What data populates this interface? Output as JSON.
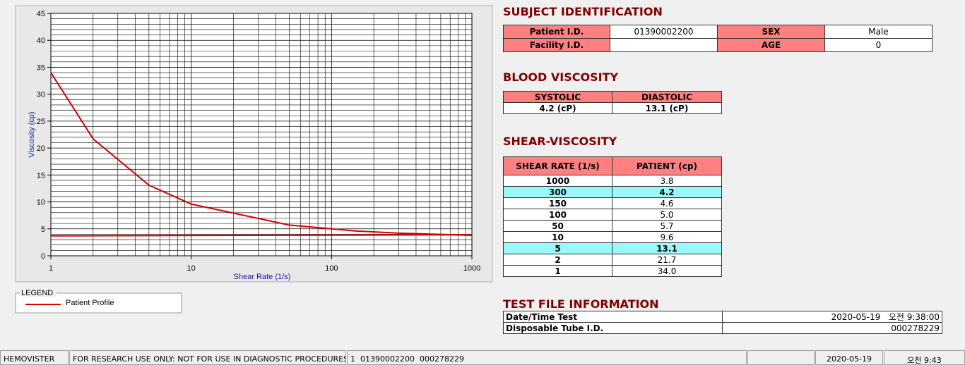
{
  "chart_data": {
    "type": "line",
    "xlabel": "Shear Rate (1/s)",
    "ylabel": "Viscosity (cp)",
    "xscale": "log",
    "xlim": [
      1,
      1000
    ],
    "ylim": [
      0,
      45
    ],
    "xticks": [
      1,
      10,
      100,
      1000
    ],
    "yticks": [
      0,
      5,
      10,
      15,
      20,
      25,
      30,
      35,
      40,
      45
    ],
    "grid": true,
    "legend_title": "LEGEND",
    "series": [
      {
        "name": "Patient Profile",
        "color": "#d40000",
        "x": [
          1,
          2,
          5,
          10,
          50,
          100,
          150,
          300,
          1000
        ],
        "values": [
          34,
          21.7,
          13.1,
          9.6,
          5.7,
          5.0,
          4.6,
          4.2,
          3.8
        ]
      },
      {
        "color": "#d40000",
        "x": [
          1,
          1000
        ],
        "values": [
          3.7,
          3.9
        ]
      }
    ]
  },
  "subject": {
    "title": "SUBJECT IDENTIFICATION",
    "rows": [
      [
        "Patient I.D.",
        "01390002200",
        "SEX",
        "Male"
      ],
      [
        "Facility I.D.",
        "",
        "AGE",
        "0"
      ]
    ]
  },
  "blood": {
    "title": "BLOOD VISCOSITY",
    "headers": [
      "SYSTOLIC",
      "DIASTOLIC"
    ],
    "values": [
      "4.2 (cP)",
      "13.1 (cP)"
    ]
  },
  "shear": {
    "title": "SHEAR-VISCOSITY",
    "headers": [
      "SHEAR RATE (1/s)",
      "PATIENT (cp)"
    ],
    "rows": [
      [
        "1000",
        "3.8"
      ],
      [
        "300",
        "4.2"
      ],
      [
        "150",
        "4.6"
      ],
      [
        "100",
        "5.0"
      ],
      [
        "50",
        "5.7"
      ],
      [
        "10",
        "9.6"
      ],
      [
        "5",
        "13.1"
      ],
      [
        "2",
        "21.7"
      ],
      [
        "1",
        "34.0"
      ]
    ],
    "highlighted_rows": [
      1,
      6
    ]
  },
  "test_file": {
    "title": "TEST FILE INFORMATION",
    "rows": [
      [
        "Date/Time Test",
        "2020-05-19   오전 9:38:00"
      ],
      [
        "Disposable Tube I.D.",
        "000278229"
      ]
    ]
  },
  "status_bar": [
    "HEMOVISTER",
    "FOR RESEARCH USE ONLY: NOT FOR USE IN DIAGNOSTIC PROCEDURES",
    "1  01390002200  000278229",
    "",
    "2020-05-19",
    "오전 9:43"
  ]
}
